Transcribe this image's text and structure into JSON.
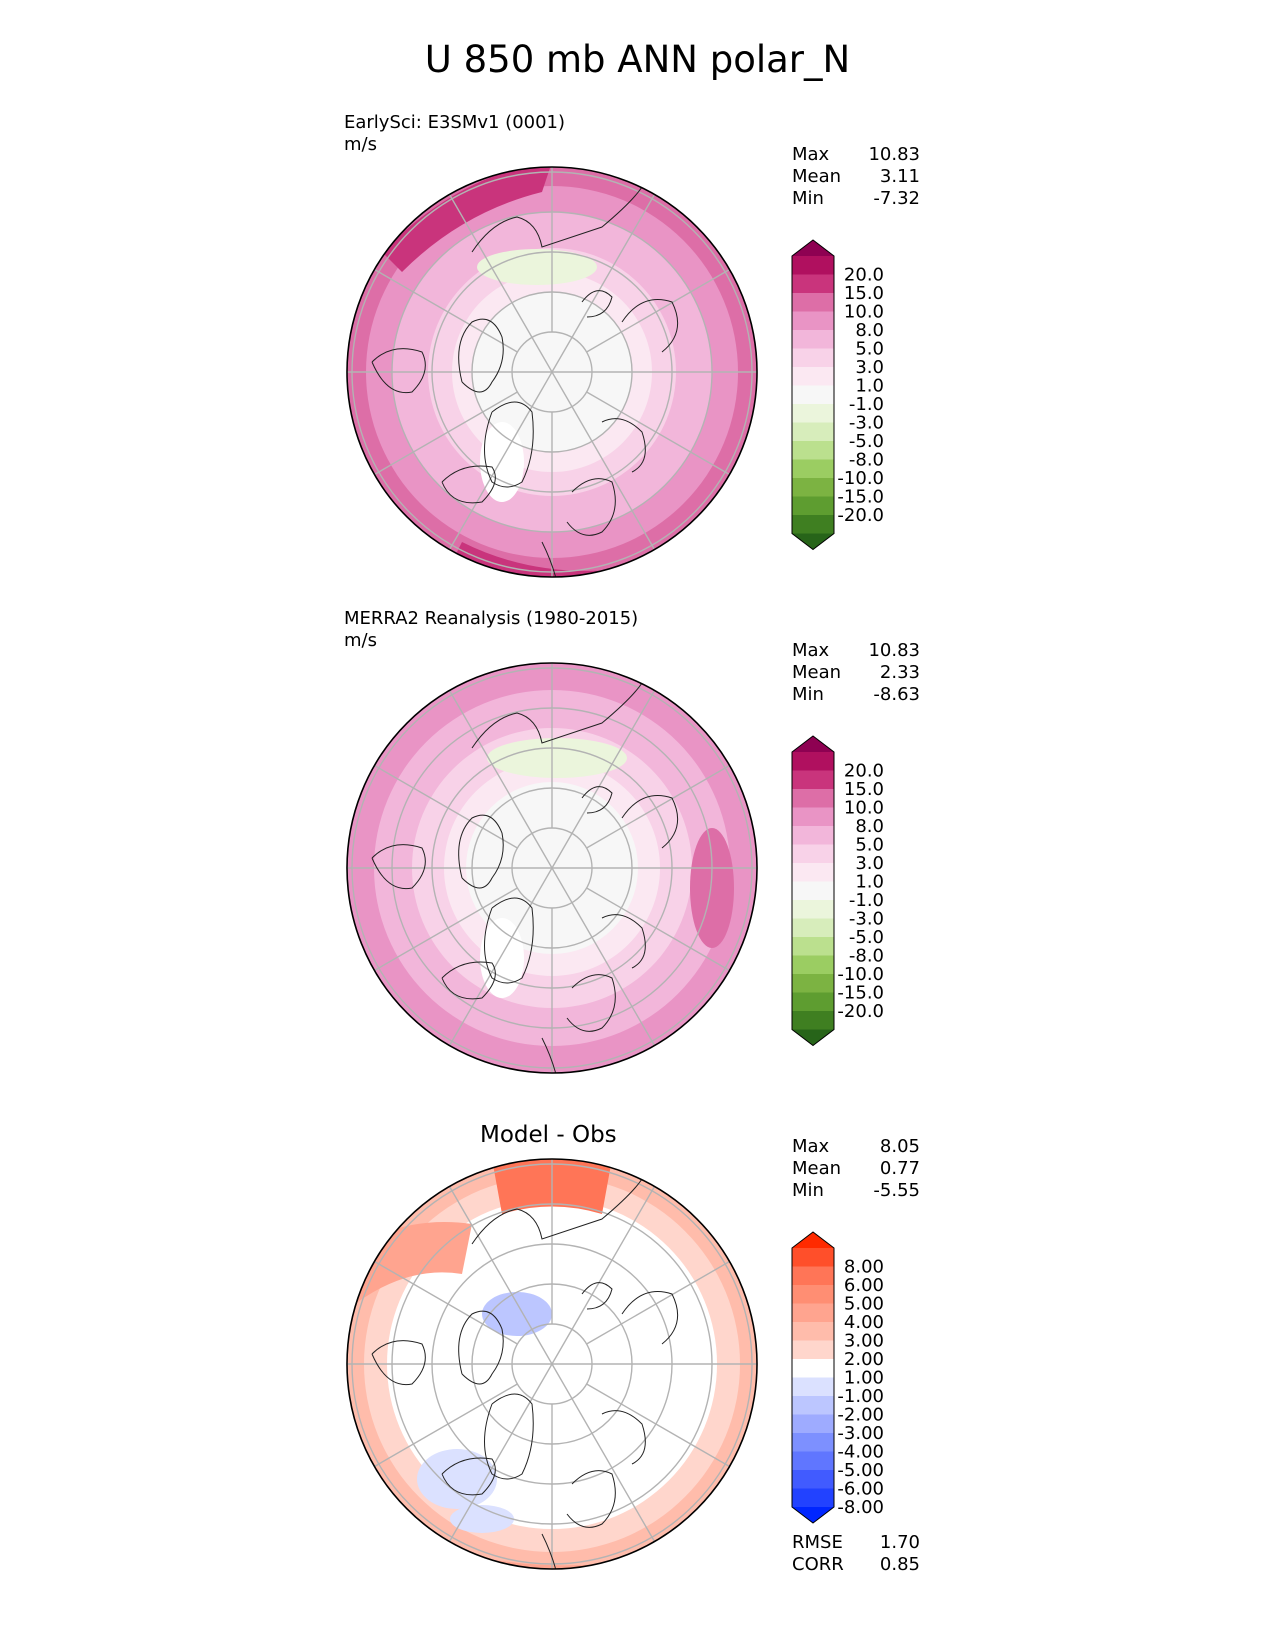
{
  "title": "U 850 mb ANN polar_N",
  "panels": [
    {
      "id": "test",
      "name": "EarlySci: E3SMv1 (0001)",
      "units": "m/s",
      "stats": [
        {
          "label": "Max",
          "value": "10.83"
        },
        {
          "label": "Mean",
          "value": "3.11"
        },
        {
          "label": "Min",
          "value": "-7.32"
        }
      ]
    },
    {
      "id": "ref",
      "name": "MERRA2 Reanalysis (1980-2015)",
      "units": "m/s",
      "stats": [
        {
          "label": "Max",
          "value": "10.83"
        },
        {
          "label": "Mean",
          "value": "2.33"
        },
        {
          "label": "Min",
          "value": "-8.63"
        }
      ]
    },
    {
      "id": "diff",
      "name": "Model - Obs",
      "stats": [
        {
          "label": "Max",
          "value": "8.05"
        },
        {
          "label": "Mean",
          "value": "0.77"
        },
        {
          "label": "Min",
          "value": "-5.55"
        }
      ],
      "metrics": [
        {
          "label": "RMSE",
          "value": "1.70"
        },
        {
          "label": "CORR",
          "value": "0.85"
        }
      ]
    }
  ],
  "colorbars": {
    "field": {
      "ticks": [
        "20.0",
        "15.0",
        "10.0",
        "8.0",
        "5.0",
        "3.0",
        "1.0",
        "-1.0",
        "-3.0",
        "-5.0",
        "-8.0",
        "-10.0",
        "-15.0",
        "-20.0"
      ],
      "colors": [
        "#8e0152",
        "#b0105f",
        "#c9347c",
        "#dd6ea7",
        "#e994c5",
        "#f2b6da",
        "#f8d2e8",
        "#fbe8f2",
        "#f7f7f7",
        "#ebf5dc",
        "#d7edbb",
        "#bbe08e",
        "#9bcd62",
        "#7cb342",
        "#5e9d30",
        "#3f7f21",
        "#276419"
      ]
    },
    "diff": {
      "ticks": [
        "8.00",
        "6.00",
        "5.00",
        "4.00",
        "3.00",
        "2.00",
        "1.00",
        "-1.00",
        "-2.00",
        "-3.00",
        "-4.00",
        "-5.00",
        "-6.00",
        "-8.00"
      ],
      "colors": [
        "#ff2a00",
        "#ff4f2a",
        "#ff7557",
        "#ff8e73",
        "#ffa48f",
        "#ffbcab",
        "#ffd6cc",
        "#ffffff",
        "#dbe1ff",
        "#bcc6ff",
        "#9eabff",
        "#7d90ff",
        "#6076ff",
        "#415bff",
        "#2242ff",
        "#0026ff"
      ]
    }
  },
  "chart_data": [
    {
      "type": "heatmap",
      "title": "EarlySci: E3SMv1 (0001)",
      "units": "m/s",
      "region": "polar_N",
      "projection": "north polar stereographic",
      "grid": true,
      "levels": [
        -20,
        -15,
        -10,
        -8,
        -5,
        -3,
        -1,
        1,
        3,
        5,
        8,
        10,
        15,
        20
      ],
      "stats": {
        "max": 10.83,
        "mean": 3.11,
        "min": -7.32
      }
    },
    {
      "type": "heatmap",
      "title": "MERRA2 Reanalysis (1980-2015)",
      "units": "m/s",
      "region": "polar_N",
      "projection": "north polar stereographic",
      "grid": true,
      "levels": [
        -20,
        -15,
        -10,
        -8,
        -5,
        -3,
        -1,
        1,
        3,
        5,
        8,
        10,
        15,
        20
      ],
      "stats": {
        "max": 10.83,
        "mean": 2.33,
        "min": -8.63
      }
    },
    {
      "type": "heatmap",
      "title": "Model - Obs",
      "region": "polar_N",
      "projection": "north polar stereographic",
      "grid": true,
      "levels": [
        -8,
        -6,
        -5,
        -4,
        -3,
        -2,
        -1,
        1,
        2,
        3,
        4,
        5,
        6,
        8
      ],
      "stats": {
        "max": 8.05,
        "mean": 0.77,
        "min": -5.55,
        "rmse": 1.7,
        "corr": 0.85
      }
    }
  ]
}
